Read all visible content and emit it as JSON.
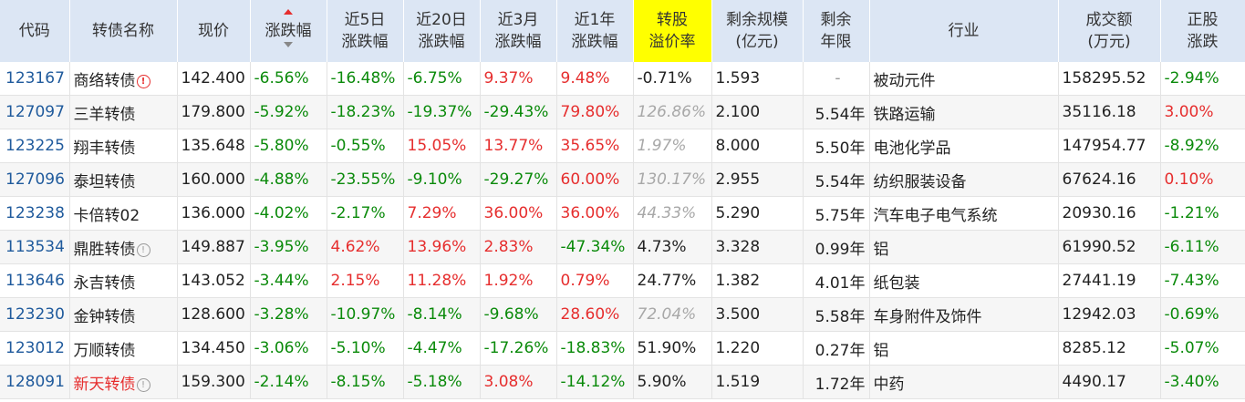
{
  "columns": [
    {
      "key": "code",
      "label": "代码"
    },
    {
      "key": "name",
      "label": "转债名称"
    },
    {
      "key": "price",
      "label": "现价"
    },
    {
      "key": "change",
      "label": "涨跌幅"
    },
    {
      "key": "d5",
      "label": "近5日\n涨跌幅"
    },
    {
      "key": "d20",
      "label": "近20日\n涨跌幅"
    },
    {
      "key": "m3",
      "label": "近3月\n涨跌幅"
    },
    {
      "key": "y1",
      "label": "近1年\n涨跌幅"
    },
    {
      "key": "premium",
      "label": "转股\n溢价率"
    },
    {
      "key": "scale",
      "label": "剩余规模\n(亿元)"
    },
    {
      "key": "years",
      "label": "剩余\n年限"
    },
    {
      "key": "industry",
      "label": "行业"
    },
    {
      "key": "turnover",
      "label": "成交额\n(万元)"
    },
    {
      "key": "stock_change",
      "label": "正股\n涨跌"
    }
  ],
  "sort": {
    "column": "change",
    "direction": "asc",
    "up_color": "#e62e2e"
  },
  "colors": {
    "up": "#e62e2e",
    "down": "#0a8a0a",
    "muted": "#a8a8a8",
    "header_bg": "#dce6f4",
    "highlight": "#ffff00",
    "code": "#1f5a9c"
  },
  "rows": [
    {
      "code": "123167",
      "name": "商络转债",
      "name_flag": "red",
      "icon": "alert-icon",
      "icon_glyph": "!",
      "price": "142.400",
      "change": "-6.56%",
      "d5": "-16.48%",
      "d20": "-6.75%",
      "m3": "9.37%",
      "y1": "9.48%",
      "premium": "-0.71%",
      "premium_muted": false,
      "scale": "1.593",
      "years": "-",
      "industry": "被动元件",
      "turnover": "158295.52",
      "stock_change": "-2.94%"
    },
    {
      "code": "127097",
      "name": "三羊转债",
      "price": "179.800",
      "change": "-5.92%",
      "d5": "-18.23%",
      "d20": "-19.37%",
      "m3": "-29.43%",
      "y1": "79.80%",
      "premium": "126.86%",
      "premium_muted": true,
      "scale": "2.100",
      "years": "5.54年",
      "industry": "铁路运输",
      "turnover": "35116.18",
      "stock_change": "3.00%"
    },
    {
      "code": "123225",
      "name": "翔丰转债",
      "price": "135.648",
      "change": "-5.80%",
      "d5": "-0.55%",
      "d20": "15.05%",
      "m3": "13.77%",
      "y1": "35.65%",
      "premium": "1.97%",
      "premium_muted": true,
      "scale": "8.000",
      "years": "5.50年",
      "industry": "电池化学品",
      "turnover": "147954.77",
      "stock_change": "-8.92%"
    },
    {
      "code": "127096",
      "name": "泰坦转债",
      "price": "160.000",
      "change": "-4.88%",
      "d5": "-23.55%",
      "d20": "-9.10%",
      "m3": "-29.27%",
      "y1": "60.00%",
      "premium": "130.17%",
      "premium_muted": true,
      "scale": "2.955",
      "years": "5.54年",
      "industry": "纺织服装设备",
      "turnover": "67624.16",
      "stock_change": "0.10%"
    },
    {
      "code": "123238",
      "name": "卡倍转02",
      "price": "136.000",
      "change": "-4.02%",
      "d5": "-2.17%",
      "d20": "7.29%",
      "m3": "36.00%",
      "y1": "36.00%",
      "premium": "44.33%",
      "premium_muted": true,
      "scale": "5.290",
      "years": "5.75年",
      "industry": "汽车电子电气系统",
      "turnover": "20930.16",
      "stock_change": "-1.21%"
    },
    {
      "code": "113534",
      "name": "鼎胜转债",
      "name_flag": "gray",
      "icon": "info-icon",
      "icon_glyph": "!",
      "price": "149.887",
      "change": "-3.95%",
      "d5": "4.62%",
      "d20": "13.96%",
      "m3": "2.83%",
      "y1": "-47.34%",
      "premium": "4.73%",
      "premium_muted": false,
      "scale": "3.328",
      "years": "0.99年",
      "industry": "铝",
      "turnover": "61990.52",
      "stock_change": "-6.11%"
    },
    {
      "code": "113646",
      "name": "永吉转债",
      "price": "143.052",
      "change": "-3.44%",
      "d5": "2.15%",
      "d20": "11.28%",
      "m3": "1.92%",
      "y1": "0.79%",
      "premium": "24.77%",
      "premium_muted": false,
      "scale": "1.382",
      "years": "4.01年",
      "industry": "纸包装",
      "turnover": "27441.19",
      "stock_change": "-7.43%"
    },
    {
      "code": "123230",
      "name": "金钟转债",
      "price": "128.600",
      "change": "-3.28%",
      "d5": "-10.97%",
      "d20": "-8.14%",
      "m3": "-9.68%",
      "y1": "28.60%",
      "premium": "72.04%",
      "premium_muted": true,
      "scale": "3.500",
      "years": "5.58年",
      "industry": "车身附件及饰件",
      "turnover": "12942.03",
      "stock_change": "-0.69%"
    },
    {
      "code": "123012",
      "name": "万顺转债",
      "price": "134.450",
      "change": "-3.06%",
      "d5": "-5.10%",
      "d20": "-4.47%",
      "m3": "-17.26%",
      "y1": "-18.83%",
      "premium": "51.90%",
      "premium_muted": false,
      "scale": "1.220",
      "years": "0.27年",
      "industry": "铝",
      "turnover": "8285.12",
      "stock_change": "-5.07%"
    },
    {
      "code": "128091",
      "name": "新天转债",
      "name_color": "red",
      "name_flag": "gray",
      "icon": "info-icon",
      "icon_glyph": "!",
      "price": "159.300",
      "change": "-2.14%",
      "d5": "-8.15%",
      "d20": "-5.18%",
      "m3": "3.08%",
      "y1": "-14.12%",
      "premium": "5.90%",
      "premium_muted": false,
      "scale": "1.519",
      "years": "1.72年",
      "industry": "中药",
      "turnover": "4490.17",
      "stock_change": "-3.40%"
    }
  ]
}
